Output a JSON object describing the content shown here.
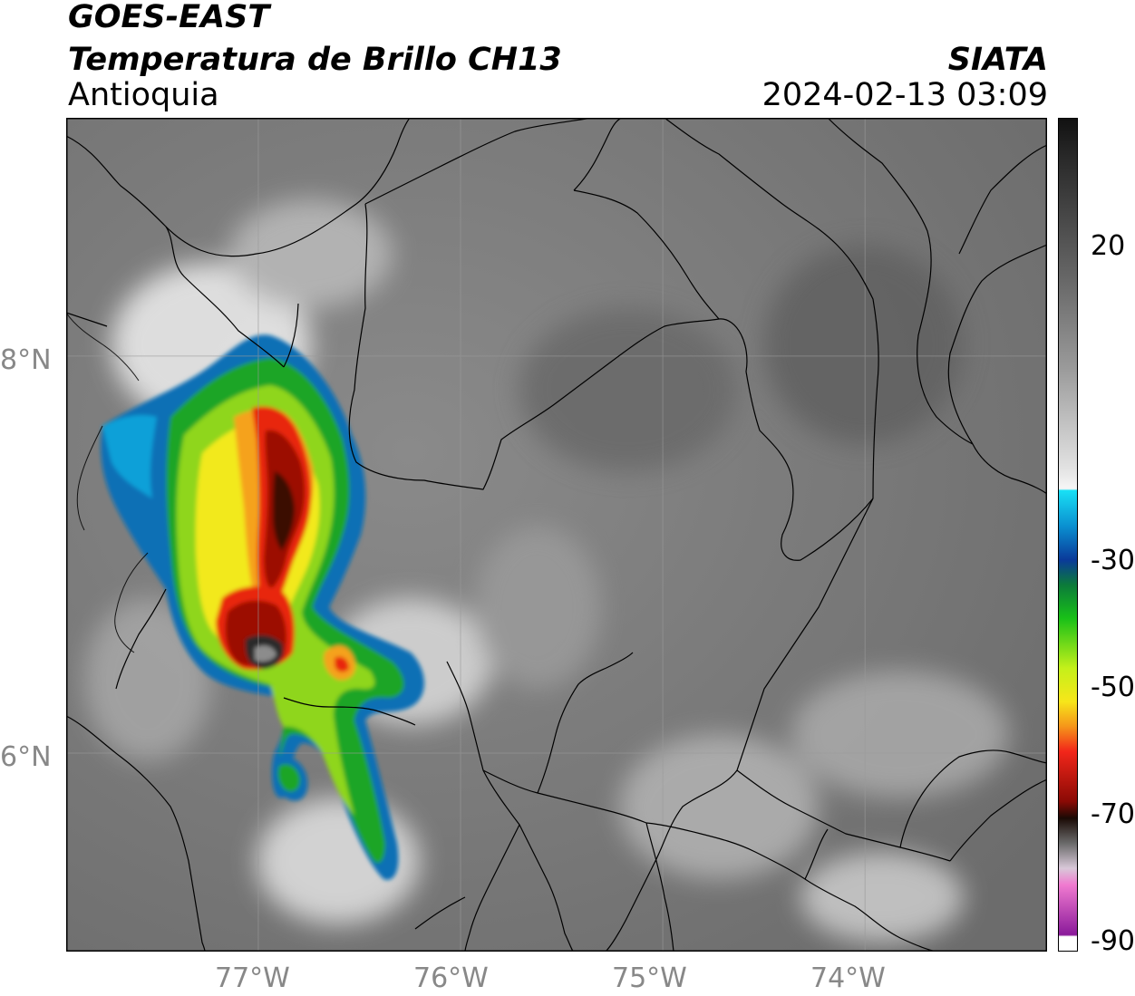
{
  "header": {
    "satellite": "GOES-EAST",
    "product": "Temperatura de Brillo CH13",
    "region": "Antioquia",
    "org": "SIATA",
    "datetime": "2024-02-13 03:09"
  },
  "map": {
    "lon_range": [
      -77.95,
      -73.1
    ],
    "lat_range": [
      5.0,
      9.2
    ],
    "lon_ticks": [
      {
        "value": -77,
        "label": "77°W"
      },
      {
        "value": -76,
        "label": "76°W"
      },
      {
        "value": -75,
        "label": "75°W"
      },
      {
        "value": -74,
        "label": "74°W"
      }
    ],
    "lat_ticks": [
      {
        "value": 8,
        "label": "8°N"
      },
      {
        "value": 6,
        "label": "6°N"
      }
    ],
    "colors": {
      "background_gray": "#7b7b7b",
      "gridline": "#9a9a9a",
      "border": "#000000"
    }
  },
  "colorbar": {
    "range": [
      -90,
      40
    ],
    "ticks": [
      {
        "value": 20,
        "label": "20"
      },
      {
        "value": -30,
        "label": "-30"
      },
      {
        "value": -50,
        "label": "-50"
      },
      {
        "value": -70,
        "label": "-70"
      },
      {
        "value": -90,
        "label": "-90"
      }
    ]
  }
}
